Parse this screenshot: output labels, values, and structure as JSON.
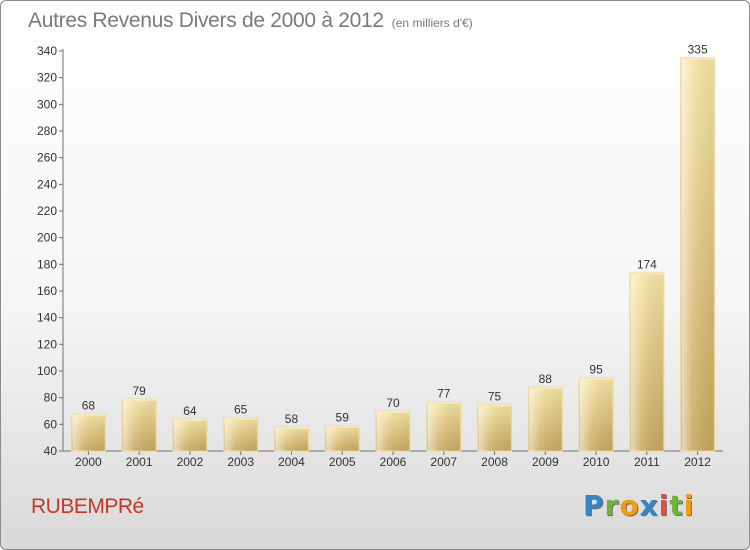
{
  "chart_data": {
    "type": "bar",
    "title": "Autres Revenus Divers de 2000 à 2012",
    "unit_label": "(en milliers d'€)",
    "categories": [
      "2000",
      "2001",
      "2002",
      "2003",
      "2004",
      "2005",
      "2006",
      "2007",
      "2008",
      "2009",
      "2010",
      "2011",
      "2012"
    ],
    "values": [
      68,
      79,
      64,
      65,
      58,
      59,
      70,
      77,
      75,
      88,
      95,
      174,
      335
    ],
    "ylim": [
      40,
      340
    ],
    "yticks": [
      40,
      60,
      80,
      100,
      120,
      140,
      160,
      180,
      200,
      220,
      240,
      260,
      280,
      300,
      320,
      340
    ],
    "grid": false,
    "bar_color": "#e7cd82",
    "bar_highlight": "#f8eab8"
  },
  "footer": {
    "commune": "RUBEMPRé",
    "commune_color": "#c0392b",
    "brand_letters": [
      {
        "ch": "P",
        "color": "#2f86c8"
      },
      {
        "ch": "r",
        "color": "#6fb33c"
      },
      {
        "ch": "o",
        "color": "#f39c12"
      },
      {
        "ch": "x",
        "color": "#2f86c8"
      },
      {
        "ch": "i",
        "color": "#e84c3d"
      },
      {
        "ch": "t",
        "color": "#6fb33c"
      },
      {
        "ch": "i",
        "color": "#f39c12"
      }
    ]
  }
}
